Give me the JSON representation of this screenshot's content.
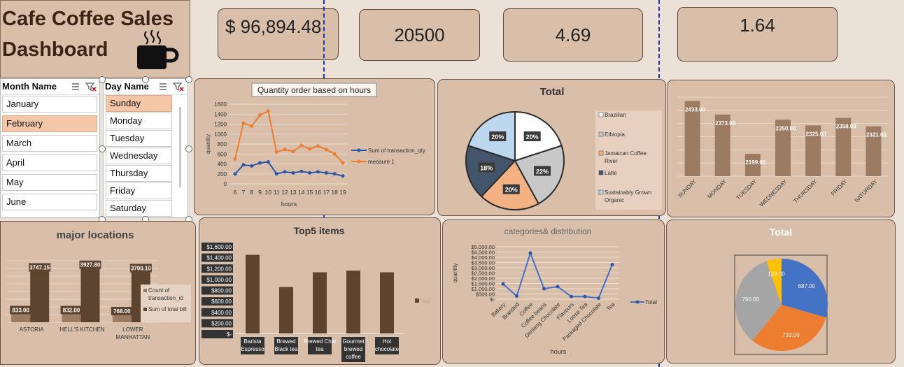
{
  "dashboard": {
    "title_line1": "Cafe Coffee Sales",
    "title_line2": "Dashboard"
  },
  "kpis": [
    "$ 96,894.48",
    "20500",
    "4.69",
    "1.64"
  ],
  "slicers": {
    "month": {
      "header": "Month Name",
      "items": [
        "January",
        "February",
        "March",
        "April",
        "May",
        "June"
      ],
      "selected": "February"
    },
    "day": {
      "header": "Day Name",
      "items": [
        "Sunday",
        "Monday",
        "Tuesday",
        "Wednesday",
        "Thursday",
        "Friday",
        "Saturday"
      ],
      "selected": "Sunday"
    }
  },
  "colors": {
    "orange": "#ed7d31",
    "blue": "#2f55a4",
    "brown": "#5c4431",
    "light_brown": "#9c7b63"
  },
  "chart_data": [
    {
      "id": "hours",
      "type": "line",
      "title": "Quantity order based on hours",
      "xlabel": "hours",
      "ylabel": "quantity",
      "x": [
        6,
        7,
        8,
        9,
        10,
        11,
        12,
        13,
        14,
        15,
        16,
        17,
        18,
        19
      ],
      "ylim": [
        0,
        1600
      ],
      "yticks": [
        0,
        200,
        400,
        600,
        800,
        1000,
        1200,
        1400,
        1600
      ],
      "series": [
        {
          "name": "Sum of transaction_qty",
          "color": "#2f55a4",
          "values": [
            200,
            380,
            360,
            420,
            440,
            200,
            240,
            220,
            250,
            220,
            240,
            220,
            200,
            160
          ]
        },
        {
          "name": "measure 1",
          "color": "#ed7d31",
          "values": [
            500,
            1220,
            1160,
            1380,
            1460,
            640,
            690,
            650,
            770,
            700,
            760,
            690,
            600,
            420
          ]
        }
      ]
    },
    {
      "id": "types",
      "type": "pie",
      "title": "Total",
      "labels": [
        "Brazilian",
        "Ethiopia",
        "Jamaican Coffee River",
        "Latte",
        "Sustainably Grown Organic"
      ],
      "values": [
        20,
        22,
        20,
        18,
        20
      ],
      "value_labels": [
        "20%",
        "22%",
        "20%",
        "18%",
        "20%"
      ],
      "colors": [
        "#ffffff",
        "#c8c8c8",
        "#f4b183",
        "#44546a",
        "#bdd7ee"
      ]
    },
    {
      "id": "days",
      "type": "bar",
      "categories": [
        "SUNDAY",
        "MONDAY",
        "TUESDAY",
        "WEDNESDAY",
        "THURSDAY",
        "FRIDAY",
        "SATURDAY"
      ],
      "values": [
        2433,
        2373,
        2199,
        2350,
        2325,
        2358,
        2321
      ],
      "value_labels": [
        "2433.00",
        "2373.00",
        "2199.00",
        "2350.00",
        "2325.00",
        "2358.00",
        "2321.00"
      ],
      "ylim": [
        2100,
        2450
      ]
    },
    {
      "id": "locations",
      "type": "bar",
      "title": "major locations",
      "categories": [
        [
          "ASTORIA"
        ],
        [
          "HELL'S KITCHEN"
        ],
        [
          "LOWER",
          "MANHATTAN"
        ]
      ],
      "series": [
        {
          "name": "Count of transaction_id",
          "values": [
            833,
            832,
            768
          ],
          "value_labels": [
            "833.00",
            "832.00",
            "768.00"
          ]
        },
        {
          "name": "Sum of total bill",
          "values": [
            3747.15,
            3927.8,
            3700.1
          ],
          "value_labels": [
            "3747.15",
            "3927.80",
            "3700.10"
          ]
        }
      ],
      "ylim": [
        0,
        4200
      ]
    },
    {
      "id": "top5",
      "type": "bar",
      "title": "Top5 items",
      "categories": [
        [
          "Barista",
          "Espresso"
        ],
        [
          "Brewed",
          "Black tea"
        ],
        [
          "Brewed Chai",
          "tea"
        ],
        [
          "Gourmet",
          "brewed",
          "coffee"
        ],
        [
          "Hot",
          "chocolate"
        ]
      ],
      "values": [
        1440,
        850,
        1120,
        1150,
        1120
      ],
      "yticks": [
        "$-",
        "$200.00",
        "$400.00",
        "$600.00",
        "$800.00",
        "$1,000.00",
        "$1,200.00",
        "$1,400.00",
        "$1,600.00"
      ],
      "ylim": [
        0,
        1600
      ],
      "legend": [
        "Total"
      ]
    },
    {
      "id": "categories",
      "type": "line",
      "title": "categories& distribution",
      "xlabel": "hours",
      "ylabel": "quantity",
      "categories": [
        "Bakery",
        "Branded",
        "Coffee",
        "Coffee beans",
        "Drinking Chocolate",
        "Flavours",
        "Loose Tea",
        "Packaged Chocolate",
        "Tea"
      ],
      "values": [
        1450,
        300,
        4400,
        1000,
        1200,
        250,
        250,
        100,
        3300
      ],
      "yticks": [
        "$-",
        "$500.00",
        "$1,000.00",
        "$1,500.00",
        "$2,000.00",
        "$2,500.00",
        "$3,000.00",
        "$3,500.00",
        "$4,000.00",
        "$4,500.00",
        "$5,000.00"
      ],
      "ylim": [
        0,
        5000
      ],
      "legend": [
        "Total"
      ]
    },
    {
      "id": "sizes",
      "type": "pie",
      "title": "Total",
      "values": [
        687,
        733,
        790,
        123
      ],
      "value_labels": [
        "687.00",
        "733.00",
        "790.00",
        "123.00"
      ],
      "colors": [
        "#4472c4",
        "#ed7d31",
        "#a5a5a5",
        "#ffc000"
      ]
    }
  ]
}
